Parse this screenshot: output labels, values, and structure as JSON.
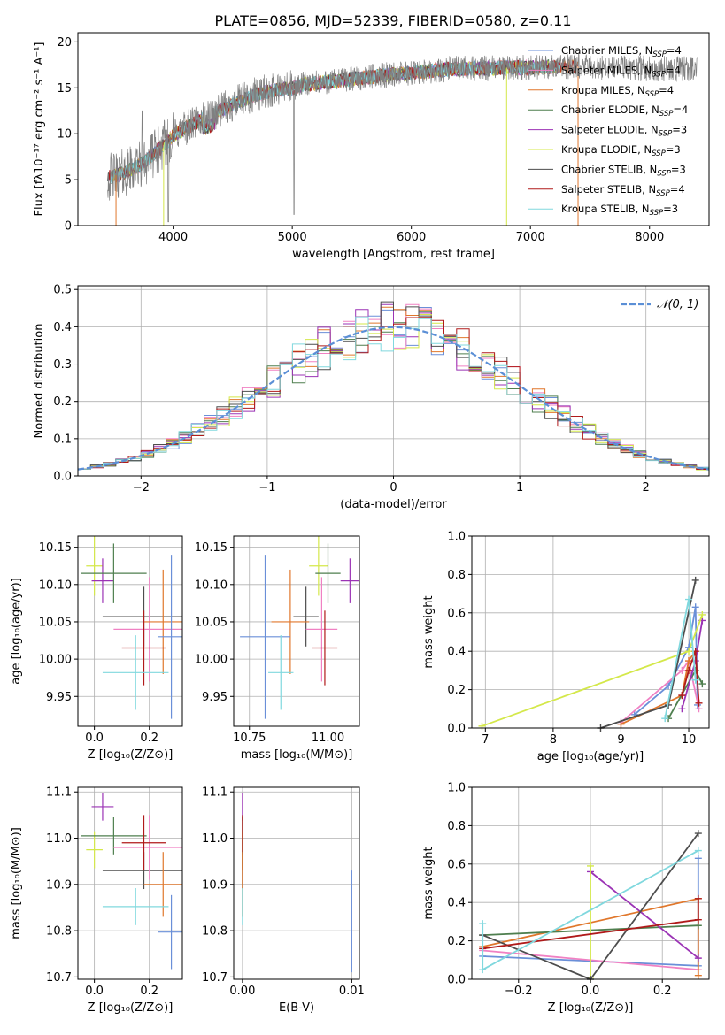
{
  "title": "PLATE=0856, MJD=52339, FIBERID=0580, z=0.11",
  "colors": {
    "Chabrier MILES": "#6a8fd8",
    "Salpeter MILES": "#f081c3",
    "Kroupa MILES": "#e0772c",
    "Chabrier ELODIE": "#4f7f4f",
    "Salpeter ELODIE": "#9b33b5",
    "Kroupa ELODIE": "#d4e84a",
    "Chabrier STELIB": "#4d4d4d",
    "Salpeter STELIB": "#b01a1a",
    "Kroupa STELIB": "#80d8de"
  },
  "chart_data": [
    {
      "id": "spectrum",
      "type": "line",
      "xlabel": "wavelength [Angstrom, rest frame]",
      "ylabel": "Flux [fλ10⁻¹⁷ erg cm⁻² s⁻¹ A⁻¹]",
      "xlim": [
        3200,
        8500
      ],
      "ylim": [
        0,
        21
      ],
      "xticks": [
        "4000",
        "5000",
        "6000",
        "7000",
        "8000"
      ],
      "yticks": [
        "0",
        "5",
        "10",
        "15",
        "20"
      ],
      "grid": false,
      "legend_position": "right",
      "legend": [
        "Chabrier MILES, N_SSP=4",
        "Salpeter MILES, N_SSP=4",
        "Kroupa MILES, N_SSP=4",
        "Chabrier ELODIE, N_SSP=4",
        "Salpeter ELODIE, N_SSP=3",
        "Kroupa ELODIE, N_SSP=3",
        "Chabrier STELIB, N_SSP=3",
        "Salpeter STELIB, N_SSP=4",
        "Kroupa STELIB, N_SSP=3"
      ],
      "data_color": "#808080",
      "continuum": [
        [
          3450,
          5.2
        ],
        [
          3600,
          5.8
        ],
        [
          3750,
          6.8
        ],
        [
          3900,
          8.5
        ],
        [
          4000,
          9.8
        ],
        [
          4100,
          10.6
        ],
        [
          4200,
          11.3
        ],
        [
          4300,
          11.8
        ],
        [
          4400,
          12.5
        ],
        [
          4500,
          13.2
        ],
        [
          4600,
          13.7
        ],
        [
          4700,
          14.3
        ],
        [
          4800,
          14.6
        ],
        [
          4900,
          14.8
        ],
        [
          5000,
          15.0
        ],
        [
          5100,
          15.4
        ],
        [
          5200,
          15.5
        ],
        [
          5400,
          15.8
        ],
        [
          5600,
          16.1
        ],
        [
          5800,
          16.4
        ],
        [
          6000,
          16.6
        ],
        [
          6200,
          16.9
        ],
        [
          6400,
          17.1
        ],
        [
          6600,
          17.1
        ],
        [
          6800,
          17.2
        ],
        [
          7000,
          17.2
        ],
        [
          7200,
          17.3
        ],
        [
          7400,
          17.3
        ]
      ],
      "data_range": [
        3450,
        8400
      ]
    },
    {
      "id": "residuals",
      "type": "bar",
      "xlabel": "(data-model)/error",
      "ylabel": "Normed distribution",
      "xlim": [
        -2.5,
        2.5
      ],
      "ylim": [
        0,
        0.51
      ],
      "xticks": [
        "−2",
        "−1",
        "0",
        "1",
        "2"
      ],
      "yticks": [
        "0.0",
        "0.1",
        "0.2",
        "0.3",
        "0.4",
        "0.5"
      ],
      "grid": true,
      "legend_position": "top-right",
      "legend": [
        "𝒩(0, 1)"
      ],
      "bin_width": 0.1,
      "gaussian_mean": 0,
      "gaussian_sigma": 1
    },
    {
      "id": "age-Z",
      "type": "scatter",
      "xlabel": "Z [log₁₀(Z/Z⊙)]",
      "ylabel": "age  [log₁₀(age/yr)]",
      "xlim": [
        -0.06,
        0.32
      ],
      "ylim": [
        9.91,
        10.165
      ],
      "xticks": [
        "0.0",
        "0.2"
      ],
      "yticks": [
        "9.95",
        "10.00",
        "10.05",
        "10.10",
        "10.15"
      ],
      "grid": true,
      "points": [
        {
          "model": "Kroupa ELODIE",
          "x": 0.0,
          "xerr": 0.03,
          "y": 10.125,
          "yerr": 0.04
        },
        {
          "model": "Salpeter ELODIE",
          "x": 0.03,
          "xerr": 0.04,
          "y": 10.105,
          "yerr": 0.03
        },
        {
          "model": "Chabrier ELODIE",
          "x": 0.07,
          "xerr": 0.12,
          "y": 10.115,
          "yerr": 0.04
        },
        {
          "model": "Chabrier STELIB",
          "x": 0.18,
          "xerr": 0.15,
          "y": 10.057,
          "yerr": 0.04
        },
        {
          "model": "Salpeter MILES",
          "x": 0.2,
          "xerr": 0.13,
          "y": 10.04,
          "yerr": 0.07
        },
        {
          "model": "Kroupa MILES",
          "x": 0.25,
          "xerr": 0.07,
          "y": 10.05,
          "yerr": 0.07
        },
        {
          "model": "Chabrier MILES",
          "x": 0.28,
          "xerr": 0.05,
          "y": 10.03,
          "yerr": 0.11
        },
        {
          "model": "Salpeter STELIB",
          "x": 0.18,
          "xerr": 0.08,
          "y": 10.015,
          "yerr": 0.05
        },
        {
          "model": "Kroupa STELIB",
          "x": 0.15,
          "xerr": 0.12,
          "y": 9.982,
          "yerr": 0.05
        }
      ]
    },
    {
      "id": "age-mass",
      "type": "scatter",
      "xlabel": "mass [log₁₀(M/M⊙)]",
      "ylabel": "",
      "xlim": [
        10.7,
        11.1
      ],
      "ylim": [
        9.91,
        10.165
      ],
      "xticks": [
        "10.75",
        "11.00"
      ],
      "yticks": [
        "9.95",
        "10.00",
        "10.05",
        "10.10",
        "10.15"
      ],
      "grid": true,
      "points": [
        {
          "model": "Kroupa ELODIE",
          "x": 10.97,
          "xerr": 0.03,
          "y": 10.125,
          "yerr": 0.04
        },
        {
          "model": "Salpeter ELODIE",
          "x": 11.07,
          "xerr": 0.03,
          "y": 10.105,
          "yerr": 0.03
        },
        {
          "model": "Chabrier ELODIE",
          "x": 11.0,
          "xerr": 0.04,
          "y": 10.115,
          "yerr": 0.04
        },
        {
          "model": "Chabrier STELIB",
          "x": 10.93,
          "xerr": 0.04,
          "y": 10.057,
          "yerr": 0.04
        },
        {
          "model": "Salpeter MILES",
          "x": 10.98,
          "xerr": 0.05,
          "y": 10.04,
          "yerr": 0.07
        },
        {
          "model": "Kroupa MILES",
          "x": 10.88,
          "xerr": 0.06,
          "y": 10.05,
          "yerr": 0.07
        },
        {
          "model": "Chabrier MILES",
          "x": 10.8,
          "xerr": 0.08,
          "y": 10.03,
          "yerr": 0.11
        },
        {
          "model": "Salpeter STELIB",
          "x": 10.99,
          "xerr": 0.04,
          "y": 10.015,
          "yerr": 0.05
        },
        {
          "model": "Kroupa STELIB",
          "x": 10.85,
          "xerr": 0.04,
          "y": 9.982,
          "yerr": 0.05
        }
      ]
    },
    {
      "id": "weight-age",
      "type": "line",
      "xlabel": "age  [log₁₀(age/yr)]",
      "ylabel": "mass weight",
      "xlim": [
        6.8,
        10.3
      ],
      "ylim": [
        0,
        1.0
      ],
      "xticks": [
        "7",
        "8",
        "9",
        "10"
      ],
      "yticks": [
        "0.0",
        "0.2",
        "0.4",
        "0.6",
        "0.8",
        "1.0"
      ],
      "grid": true,
      "series": [
        {
          "model": "Chabrier MILES",
          "points": [
            [
              9.2,
              0.07
            ],
            [
              9.7,
              0.22
            ],
            [
              10.0,
              0.42
            ],
            [
              10.1,
              0.63
            ],
            [
              10.13,
              0.12
            ]
          ]
        },
        {
          "model": "Salpeter MILES",
          "points": [
            [
              9.0,
              0.03
            ],
            [
              9.9,
              0.3
            ],
            [
              10.0,
              0.35
            ],
            [
              10.15,
              0.1
            ]
          ]
        },
        {
          "model": "Kroupa MILES",
          "points": [
            [
              9.0,
              0.02
            ],
            [
              9.9,
              0.17
            ],
            [
              10.0,
              0.35
            ],
            [
              10.1,
              0.4
            ]
          ]
        },
        {
          "model": "Chabrier ELODIE",
          "points": [
            [
              9.7,
              0.05
            ],
            [
              10.1,
              0.3
            ],
            [
              10.2,
              0.23
            ]
          ]
        },
        {
          "model": "Salpeter ELODIE",
          "points": [
            [
              9.9,
              0.1
            ],
            [
              10.1,
              0.35
            ],
            [
              10.2,
              0.56
            ]
          ]
        },
        {
          "model": "Kroupa ELODIE",
          "points": [
            [
              6.95,
              0.01
            ],
            [
              10.0,
              0.4
            ],
            [
              10.2,
              0.59
            ]
          ]
        },
        {
          "model": "Chabrier STELIB",
          "points": [
            [
              8.7,
              0.0
            ],
            [
              9.7,
              0.12
            ],
            [
              10.1,
              0.77
            ]
          ]
        },
        {
          "model": "Salpeter STELIB",
          "points": [
            [
              9.9,
              0.17
            ],
            [
              10.0,
              0.3
            ],
            [
              10.1,
              0.4
            ],
            [
              10.15,
              0.13
            ]
          ]
        },
        {
          "model": "Kroupa STELIB",
          "points": [
            [
              9.65,
              0.05
            ],
            [
              10.0,
              0.67
            ],
            [
              10.1,
              0.25
            ]
          ]
        }
      ]
    },
    {
      "id": "mass-Z",
      "type": "scatter",
      "xlabel": "Z [log₁₀(Z/Z⊙)]",
      "ylabel": "mass [log₁₀(M/M⊙)]",
      "xlim": [
        -0.06,
        0.32
      ],
      "ylim": [
        10.695,
        11.11
      ],
      "xticks": [
        "0.0",
        "0.2"
      ],
      "yticks": [
        "10.7",
        "10.8",
        "10.9",
        "11.0",
        "11.1"
      ],
      "grid": true,
      "points": [
        {
          "model": "Kroupa ELODIE",
          "x": 0.0,
          "xerr": 0.03,
          "y": 10.975,
          "yerr": 0.04
        },
        {
          "model": "Salpeter ELODIE",
          "x": 0.03,
          "xerr": 0.04,
          "y": 11.068,
          "yerr": 0.03
        },
        {
          "model": "Chabrier ELODIE",
          "x": 0.07,
          "xerr": 0.12,
          "y": 11.005,
          "yerr": 0.04
        },
        {
          "model": "Chabrier STELIB",
          "x": 0.18,
          "xerr": 0.15,
          "y": 10.93,
          "yerr": 0.04
        },
        {
          "model": "Salpeter MILES",
          "x": 0.2,
          "xerr": 0.13,
          "y": 10.98,
          "yerr": 0.07
        },
        {
          "model": "Kroupa MILES",
          "x": 0.25,
          "xerr": 0.07,
          "y": 10.9,
          "yerr": 0.07
        },
        {
          "model": "Chabrier MILES",
          "x": 0.28,
          "xerr": 0.05,
          "y": 10.797,
          "yerr": 0.08
        },
        {
          "model": "Salpeter STELIB",
          "x": 0.18,
          "xerr": 0.08,
          "y": 10.99,
          "yerr": 0.06
        },
        {
          "model": "Kroupa STELIB",
          "x": 0.15,
          "xerr": 0.12,
          "y": 10.852,
          "yerr": 0.04
        }
      ]
    },
    {
      "id": "mass-EBV",
      "type": "scatter",
      "xlabel": "E(B-V)",
      "ylabel": "",
      "xlim": [
        -0.0008,
        0.0107
      ],
      "ylim": [
        10.695,
        11.11
      ],
      "xticks": [
        "0.00",
        "0.01"
      ],
      "yticks": [
        "10.7",
        "10.8",
        "10.9",
        "11.0",
        "11.1"
      ],
      "grid": true,
      "points": [
        {
          "model": "Salpeter ELODIE",
          "x": 0.0,
          "xerr": 0,
          "y": 11.068,
          "yerr": 0.03
        },
        {
          "model": "Chabrier ELODIE",
          "x": 0.0,
          "xerr": 0,
          "y": 11.005,
          "yerr": 0.04
        },
        {
          "model": "Kroupa ELODIE",
          "x": 0.0,
          "xerr": 0,
          "y": 10.975,
          "yerr": 0.04
        },
        {
          "model": "Salpeter STELIB",
          "x": 0.0,
          "xerr": 0,
          "y": 10.99,
          "yerr": 0.06
        },
        {
          "model": "Chabrier STELIB",
          "x": 0.0,
          "xerr": 0,
          "y": 10.93,
          "yerr": 0.04
        },
        {
          "model": "Kroupa MILES",
          "x": 0.0,
          "xerr": 0,
          "y": 10.9,
          "yerr": 0.07
        },
        {
          "model": "Kroupa STELIB",
          "x": 0.0,
          "xerr": 0,
          "y": 10.852,
          "yerr": 0.04
        },
        {
          "model": "Chabrier MILES",
          "x": 0.01,
          "xerr": 0,
          "y": 10.82,
          "yerr": 0.11
        }
      ]
    },
    {
      "id": "weight-Z",
      "type": "line",
      "xlabel": "Z [log₁₀(Z/Z⊙)]",
      "ylabel": "mass weight",
      "xlim": [
        -0.33,
        0.33
      ],
      "ylim": [
        0,
        1.0
      ],
      "xticks": [
        "−0.2",
        "0.0",
        "0.2"
      ],
      "yticks": [
        "0.0",
        "0.2",
        "0.4",
        "0.6",
        "0.8",
        "1.0"
      ],
      "grid": true,
      "series": [
        {
          "model": "Chabrier MILES",
          "points": [
            [
              -0.3,
              0.12
            ],
            [
              0.3,
              0.07
            ],
            [
              0.3,
              0.63
            ]
          ]
        },
        {
          "model": "Salpeter MILES",
          "points": [
            [
              -0.3,
              0.15
            ],
            [
              0.3,
              0.05
            ]
          ]
        },
        {
          "model": "Kroupa MILES",
          "points": [
            [
              -0.3,
              0.17
            ],
            [
              0.3,
              0.42
            ],
            [
              0.3,
              0.02
            ]
          ]
        },
        {
          "model": "Chabrier ELODIE",
          "points": [
            [
              -0.3,
              0.23
            ],
            [
              0.3,
              0.28
            ]
          ]
        },
        {
          "model": "Salpeter ELODIE",
          "points": [
            [
              0.0,
              0.56
            ],
            [
              0.3,
              0.11
            ]
          ]
        },
        {
          "model": "Kroupa ELODIE",
          "points": [
            [
              0.0,
              0.59
            ],
            [
              0.0,
              0.01
            ]
          ]
        },
        {
          "model": "Chabrier STELIB",
          "points": [
            [
              -0.3,
              0.23
            ],
            [
              0.0,
              0.0
            ],
            [
              0.3,
              0.76
            ]
          ]
        },
        {
          "model": "Salpeter STELIB",
          "points": [
            [
              -0.3,
              0.16
            ],
            [
              0.3,
              0.31
            ],
            [
              0.3,
              0.42
            ]
          ]
        },
        {
          "model": "Kroupa STELIB",
          "points": [
            [
              -0.3,
              0.29
            ],
            [
              -0.3,
              0.05
            ],
            [
              0.3,
              0.67
            ]
          ]
        }
      ]
    }
  ]
}
